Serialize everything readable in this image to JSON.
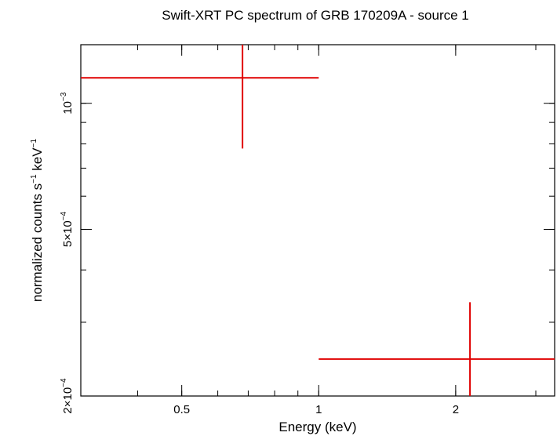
{
  "chart_data": {
    "type": "scatter",
    "title": "Swift-XRT PC spectrum of GRB 170209A - source 1",
    "xlabel": "Energy (keV)",
    "ylabel": {
      "base": "normalized counts s",
      "sup1": "−1",
      "mid": " keV",
      "sup2": "−1"
    },
    "x_scale": "log",
    "y_scale": "log",
    "xlim": [
      0.3,
      3.3
    ],
    "ylim": [
      0.0002,
      0.00138
    ],
    "x_ticks": [
      {
        "value": 0.5,
        "label": "0.5"
      },
      {
        "value": 1,
        "label": "1"
      },
      {
        "value": 2,
        "label": "2"
      }
    ],
    "y_ticks": [
      {
        "value": 0.001,
        "mantissa": "",
        "base": "10",
        "exp": "−3"
      },
      {
        "value": 0.0005,
        "mantissa": "5×",
        "base": "10",
        "exp": "−4"
      },
      {
        "value": 0.0002,
        "mantissa": "2×",
        "base": "10",
        "exp": "−4"
      }
    ],
    "color": "#e00000",
    "points": [
      {
        "x": 0.68,
        "xlo": 0.3,
        "xhi": 1.0,
        "y": 0.00115,
        "ylo": 0.00078,
        "yhi": 0.00138
      },
      {
        "x": 2.15,
        "xlo": 1.0,
        "xhi": 3.3,
        "y": 0.000245,
        "ylo": 0.0002,
        "yhi": 0.000335
      }
    ]
  }
}
